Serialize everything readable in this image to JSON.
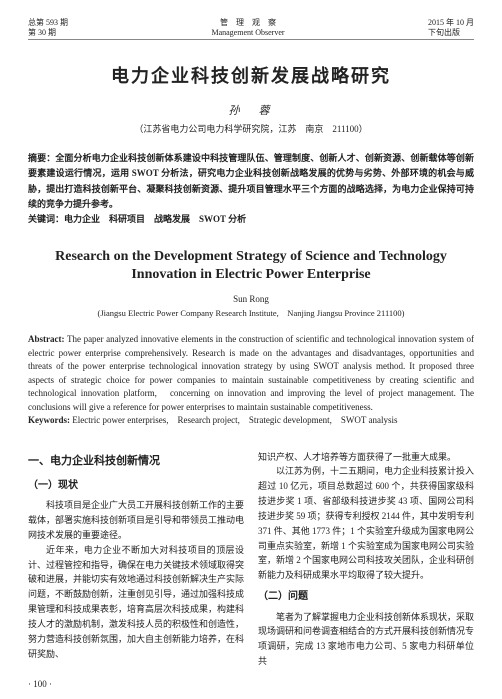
{
  "header": {
    "left_line1": "总第 593 期",
    "left_line2": "第 30 期",
    "center_line1": "管　理　观　察",
    "center_line2": "Management Observer",
    "right_line1": "2015 年 10 月",
    "right_line2": "下旬出版"
  },
  "title_cn": "电力企业科技创新发展战略研究",
  "author_cn": "孙　蓉",
  "affil_cn": "（江苏省电力公司电力科学研究院，江苏　南京　211100）",
  "abstract_cn_label": "摘要：",
  "abstract_cn": "全面分析电力企业科技创新体系建设中科技管理队伍、管理制度、创新人才、创新资源、创新载体等创新要素建设运行情况，运用 SWOT 分析法，研究电力企业科技创新战略发展的优势与劣势、外部环境的机会与威胁，提出打造科技创新平台、凝聚科技创新资源、提升项目管理水平三个方面的战略选择，为电力企业保持可持续的竞争力提升参考。",
  "keywords_cn_label": "关键词：",
  "keywords_cn": "电力企业　科研项目　战略发展　SWOT 分析",
  "title_en": "Research on the Development Strategy of Science and Technology Innovation in Electric Power Enterprise",
  "author_en": "Sun Rong",
  "affil_en": "(Jiangsu Electric Power Company Research Institute,　Nanjing Jiangsu Province 211100)",
  "abstract_en_label": "Abstract: ",
  "abstract_en": "The paper analyzed innovative elements in the construction of scientific and technological innovation system of electric power enterprise comprehensively. Research is made on the advantages and disadvantages, opportunities and threats of the power enterprise technological innovation strategy by using SWOT analysis method. It proposed three aspects of strategic choice for power companies to maintain sustainable competitiveness by creating scientific and technological innovation platform,　concerning on innovation and improving the level of project management. The conclusions will give a reference for power enterprises to maintain sustainable competitiveness.",
  "keywords_en_label": "Keywords: ",
  "keywords_en": "Electric power enterprises,　Research project,　Strategic development,　SWOT analysis",
  "section1_heading": "一、电力企业科技创新情况",
  "sub1_heading": "（一）现状",
  "p1": "科技项目是企业广大员工开展科技创新工作的主要载体，部署实施科技创新项目是引导和带领员工推动电网技术发展的重要途径。",
  "p2": "近年来，电力企业不断加大对科技项目的顶层设计、过程管控和指导，确保在电力关键技术领域取得突破和进展，并能切实有效地通过科技创新解决生产实际问题，不断鼓励创新，注重创见引导，通过加强科技成果管理和科技成果表彰，培育高层次科技成果，构建科技人才的激励机制，激发科技人员的积极性和创造性，努力营造科技创新氛围，加大自主创新能力培养，在科研奖励、",
  "p_right1": "知识产权、人才培养等方面获得了一批重大成果。",
  "p_right2": "以江苏为例，十二五期间，电力企业科技累计投入超过 10 亿元，项目总数超过 600 个，共获得国家级科技进步奖 1 项、省部级科技进步奖 43 项、国网公司科技进步奖 59 项；获得专利授权 2144 件，其中发明专利 371 件、其他 1773 件；1 个实验室升级成为国家电网公司重点实验室，新增 1 个实验室成为国家电网公司实验室，新增 2 个国家电网公司科技攻关团队，企业科研创新能力及科研成果水平均取得了较大提升。",
  "sub2_heading": "（二）问题",
  "p_right3": "笔者为了解掌握电力企业科技创新体系现状，采取现场调研和问卷调查相结合的方式开展科技创新情况专项调研，完成 13 家地市电力公司、5 家电力科研单位共",
  "page_number": "· 100 ·"
}
